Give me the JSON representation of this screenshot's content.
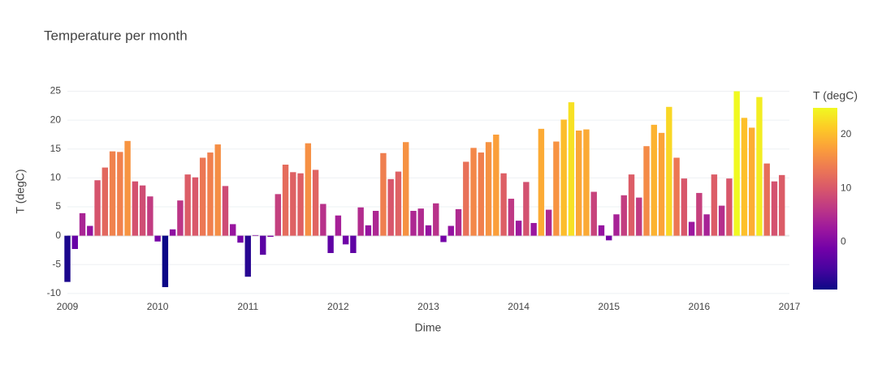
{
  "chart_data": {
    "type": "bar",
    "title": "Temperature per month",
    "x_label": "Dime",
    "y_label": "T (degC)",
    "x": [
      "2009-01",
      "2009-02",
      "2009-03",
      "2009-04",
      "2009-05",
      "2009-06",
      "2009-07",
      "2009-08",
      "2009-09",
      "2009-10",
      "2009-11",
      "2009-12",
      "2010-01",
      "2010-02",
      "2010-03",
      "2010-04",
      "2010-05",
      "2010-06",
      "2010-07",
      "2010-08",
      "2010-09",
      "2010-10",
      "2010-11",
      "2010-12",
      "2011-01",
      "2011-02",
      "2011-03",
      "2011-04",
      "2011-05",
      "2011-06",
      "2011-07",
      "2011-08",
      "2011-09",
      "2011-10",
      "2011-11",
      "2011-12",
      "2012-01",
      "2012-02",
      "2012-03",
      "2012-04",
      "2012-05",
      "2012-06",
      "2012-07",
      "2012-08",
      "2012-09",
      "2012-10",
      "2012-11",
      "2012-12",
      "2013-01",
      "2013-02",
      "2013-03",
      "2013-04",
      "2013-05",
      "2013-06",
      "2013-07",
      "2013-08",
      "2013-09",
      "2013-10",
      "2013-11",
      "2013-12",
      "2014-01",
      "2014-02",
      "2014-03",
      "2014-04",
      "2014-05",
      "2014-06",
      "2014-07",
      "2014-08",
      "2014-09",
      "2014-10",
      "2014-11",
      "2014-12",
      "2015-01",
      "2015-02",
      "2015-03",
      "2015-04",
      "2015-05",
      "2015-06",
      "2015-07",
      "2015-08",
      "2015-09",
      "2015-10",
      "2015-11",
      "2015-12",
      "2016-01",
      "2016-02",
      "2016-03",
      "2016-04",
      "2016-05",
      "2016-06",
      "2016-07",
      "2016-08",
      "2016-09",
      "2016-10",
      "2016-11",
      "2016-12"
    ],
    "values": [
      -8,
      -2.3,
      3.9,
      1.7,
      9.6,
      11.8,
      14.6,
      14.5,
      16.4,
      9.4,
      8.7,
      6.8,
      -1,
      -8.9,
      1.1,
      6.1,
      10.6,
      10.1,
      13.5,
      14.4,
      15.8,
      8.6,
      2.0,
      -1.2,
      -7.1,
      0.1,
      -3.3,
      -0.2,
      7.2,
      12.3,
      11.0,
      10.8,
      16.0,
      11.4,
      5.5,
      -3.0,
      3.5,
      -1.5,
      -3.0,
      4.9,
      1.8,
      4.3,
      14.3,
      9.8,
      11.1,
      16.2,
      4.3,
      4.7,
      1.8,
      5.6,
      -1.1,
      1.7,
      4.6,
      12.8,
      15.2,
      14.4,
      16.2,
      17.5,
      10.8,
      6.4,
      2.6,
      9.3,
      2.2,
      18.5,
      4.5,
      16.3,
      20.1,
      23.1,
      18.2,
      18.4,
      7.6,
      1.8,
      -0.8,
      3.7,
      7.0,
      10.6,
      6.6,
      15.5,
      19.2,
      17.8,
      22.3,
      13.5,
      9.9,
      2.4,
      7.4,
      3.7,
      10.6,
      5.2,
      9.9,
      25.0,
      20.4,
      18.7,
      24.0,
      12.5,
      9.4,
      10.5
    ],
    "xlim": [
      "2009-01",
      "2017-01"
    ],
    "xticks": [
      "2009",
      "2010",
      "2011",
      "2012",
      "2013",
      "2014",
      "2015",
      "2016",
      "2017"
    ],
    "ylim": [
      -11,
      26.2
    ],
    "yticks": [
      -10,
      -5,
      0,
      5,
      10,
      15,
      20,
      25
    ],
    "grid": true,
    "colorscale": [
      "#0d0887",
      "#46039f",
      "#7201a8",
      "#9c179e",
      "#bd3786",
      "#d8576b",
      "#ed7953",
      "#fb9f3a",
      "#fdca26",
      "#f0f921"
    ],
    "colorbar": {
      "title": "T (degC)",
      "clim": [
        -8.9,
        25
      ],
      "ticks": [
        0,
        10,
        20
      ]
    }
  }
}
